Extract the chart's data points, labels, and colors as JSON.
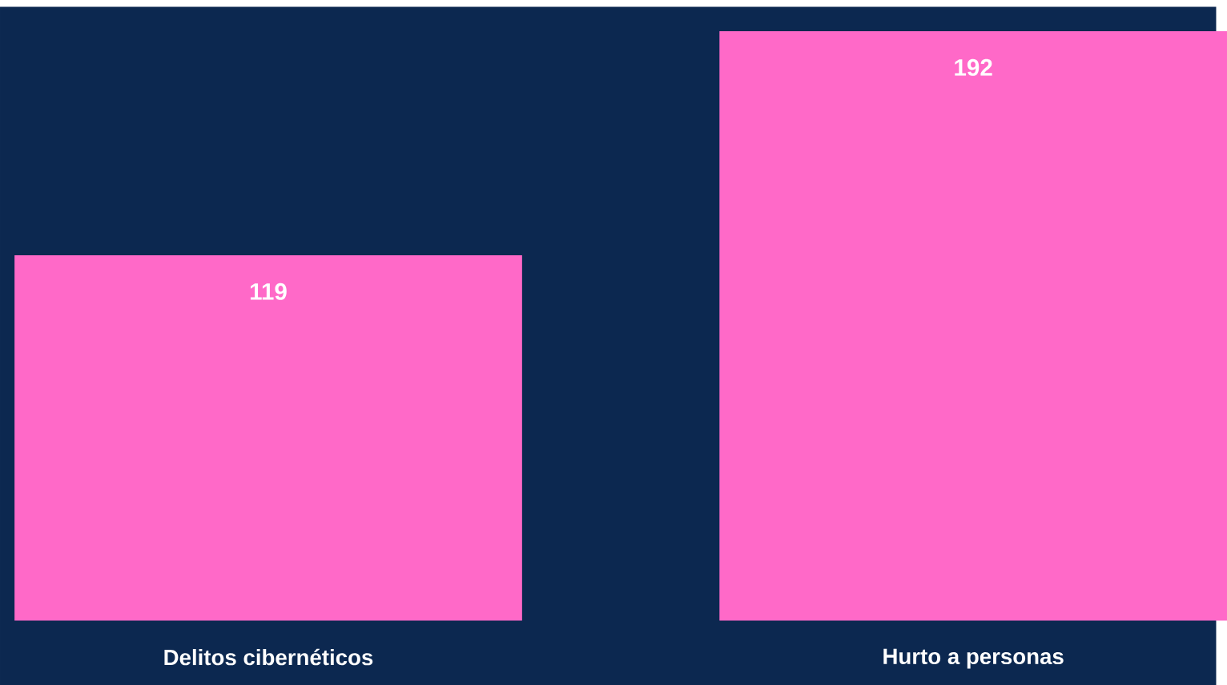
{
  "chart_data": {
    "type": "bar",
    "categories": [
      "Delitos cibernéticos",
      "Hurto a personas"
    ],
    "values": [
      119,
      192
    ],
    "color": "#ff69c8",
    "ylim": [
      0,
      200
    ],
    "data_labels": true,
    "tick_labels": "x"
  }
}
